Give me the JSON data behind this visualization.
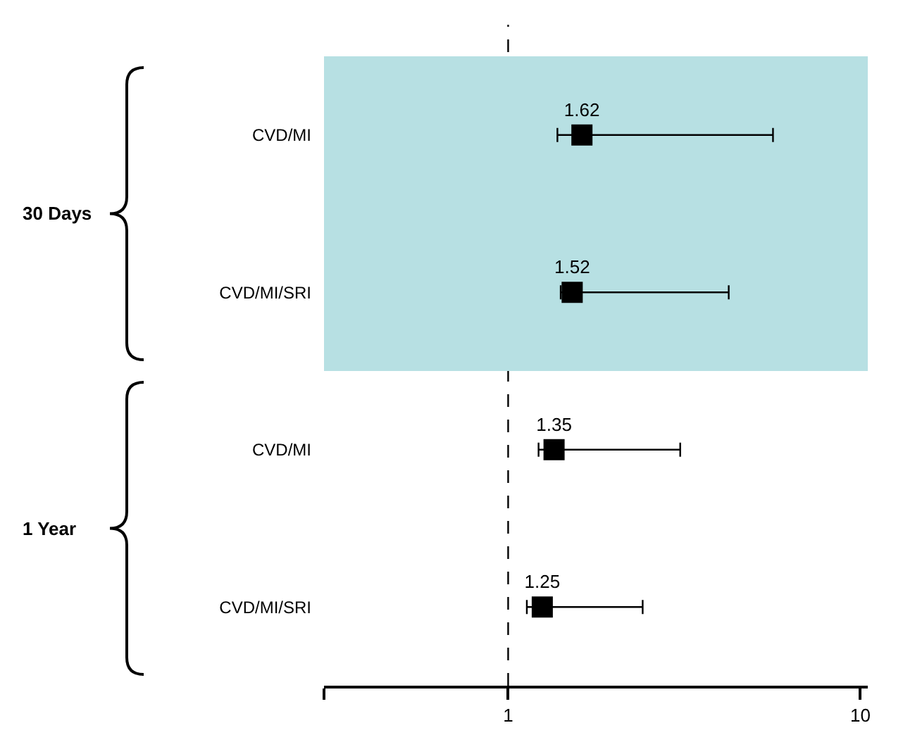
{
  "chart_data": {
    "type": "scatter",
    "orientation": "horizontal",
    "categories": [
      "CVD/MI",
      "CVD/MI/SRI",
      "CVD/MI",
      "CVD/MI/SRI"
    ],
    "values": [
      1.62,
      1.52,
      1.35,
      1.25
    ],
    "errors": [
      [
        1.38,
        5.65
      ],
      [
        1.41,
        4.23
      ],
      [
        1.22,
        3.08
      ],
      [
        1.13,
        2.41
      ]
    ],
    "color": "#000000",
    "marker": "square",
    "data_labels": true,
    "log": "x",
    "xlim": [
      0.3,
      10.5
    ],
    "xticks": [
      {
        "value": 0.3,
        "label": null
      },
      1,
      10
    ],
    "grid": false,
    "ref_lines": [
      {
        "axis": "x",
        "value": 1,
        "line_style": "dashed",
        "color": "#000000"
      }
    ],
    "bands": [
      {
        "axis": "y",
        "from": "CVD/MI",
        "to": "CVD/MI/SRI",
        "color": "#b7e0e3"
      }
    ],
    "annotations": [
      "30 Days",
      "1 Year"
    ]
  }
}
